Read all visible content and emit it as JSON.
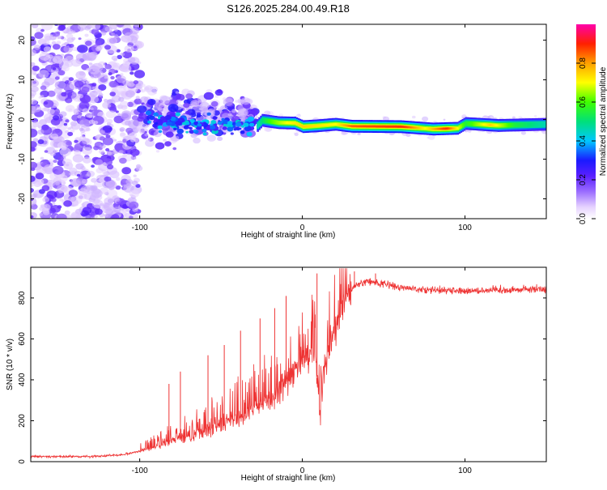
{
  "figure_title": "S126.2025.284.00.49.R18",
  "colorbar": {
    "label": "Normalized spectral amplitude",
    "ticks": [
      "0.0",
      "0.2",
      "0.4",
      "0.6",
      "0.8"
    ],
    "tick_values": [
      0.0,
      0.2,
      0.4,
      0.6,
      0.8
    ],
    "range": [
      0,
      1
    ]
  },
  "chart_data": [
    {
      "type": "heatmap",
      "title": "",
      "xlabel": "Height of straight line (km)",
      "ylabel": "Frequency (Hz)",
      "xlim": [
        -167,
        150
      ],
      "ylim": [
        -25,
        24
      ],
      "xticks": [
        -100,
        0,
        100
      ],
      "xtick_labels": [
        "-100",
        "0",
        "100"
      ],
      "yticks": [
        -20,
        -10,
        0,
        10,
        20
      ],
      "ytick_labels": [
        "-20",
        "-10",
        "0",
        "10",
        "20"
      ],
      "ridge": [
        {
          "x": -28,
          "y": -1.5
        },
        {
          "x": -25,
          "y": -0.2
        },
        {
          "x": -15,
          "y": -0.8
        },
        {
          "x": -5,
          "y": -0.9
        },
        {
          "x": 0,
          "y": -1.8
        },
        {
          "x": 8,
          "y": -1.6
        },
        {
          "x": 20,
          "y": -1.2
        },
        {
          "x": 30,
          "y": -1.7
        },
        {
          "x": 60,
          "y": -1.8
        },
        {
          "x": 80,
          "y": -2.4
        },
        {
          "x": 95,
          "y": -2.2
        },
        {
          "x": 100,
          "y": -1.0
        },
        {
          "x": 120,
          "y": -1.5
        },
        {
          "x": 150,
          "y": -1.2
        }
      ],
      "ridge_amplitude": [
        {
          "x": -28,
          "v": 0.45
        },
        {
          "x": -20,
          "v": 0.6
        },
        {
          "x": -10,
          "v": 0.7
        },
        {
          "x": 0,
          "v": 0.75
        },
        {
          "x": 20,
          "v": 0.7
        },
        {
          "x": 30,
          "v": 0.85
        },
        {
          "x": 60,
          "v": 0.92
        },
        {
          "x": 75,
          "v": 0.7
        },
        {
          "x": 88,
          "v": 0.9
        },
        {
          "x": 100,
          "v": 0.55
        },
        {
          "x": 115,
          "v": 0.75
        },
        {
          "x": 130,
          "v": 0.55
        },
        {
          "x": 150,
          "v": 0.45
        }
      ]
    },
    {
      "type": "line",
      "title": "",
      "xlabel": "Height of straight line (km)",
      "ylabel": "SNR (10 * v/v)",
      "xlim": [
        -167,
        150
      ],
      "ylim": [
        0,
        950
      ],
      "xticks": [
        -100,
        0,
        100
      ],
      "xtick_labels": [
        "-100",
        "0",
        "100"
      ],
      "yticks": [
        0,
        200,
        400,
        600,
        800
      ],
      "ytick_labels": [
        "0",
        "200",
        "400",
        "600",
        "800"
      ],
      "series": [
        {
          "name": "SNR",
          "color": "#ee3333",
          "baseline_profile": [
            {
              "x": -167,
              "y": 25
            },
            {
              "x": -130,
              "y": 25
            },
            {
              "x": -110,
              "y": 35
            },
            {
              "x": -95,
              "y": 60
            },
            {
              "x": -80,
              "y": 100
            },
            {
              "x": -60,
              "y": 150
            },
            {
              "x": -45,
              "y": 200
            },
            {
              "x": -30,
              "y": 260
            },
            {
              "x": -20,
              "y": 300
            },
            {
              "x": -10,
              "y": 380
            },
            {
              "x": 0,
              "y": 480
            },
            {
              "x": 5,
              "y": 520
            },
            {
              "x": 8,
              "y": 500
            },
            {
              "x": 11,
              "y": 250
            },
            {
              "x": 13,
              "y": 420
            },
            {
              "x": 18,
              "y": 600
            },
            {
              "x": 25,
              "y": 750
            },
            {
              "x": 32,
              "y": 860
            },
            {
              "x": 40,
              "y": 880
            },
            {
              "x": 50,
              "y": 870
            },
            {
              "x": 60,
              "y": 850
            },
            {
              "x": 80,
              "y": 840
            },
            {
              "x": 100,
              "y": 835
            },
            {
              "x": 150,
              "y": 845
            }
          ],
          "spikes": [
            {
              "x": -82,
              "y": 380
            },
            {
              "x": -75,
              "y": 440
            },
            {
              "x": -58,
              "y": 520
            },
            {
              "x": -48,
              "y": 570
            },
            {
              "x": -38,
              "y": 640
            },
            {
              "x": -26,
              "y": 700
            },
            {
              "x": -17,
              "y": 750
            },
            {
              "x": -10,
              "y": 810
            },
            {
              "x": 9,
              "y": 920
            },
            {
              "x": 32,
              "y": 930
            },
            {
              "x": 45,
              "y": 920
            }
          ]
        }
      ]
    }
  ]
}
